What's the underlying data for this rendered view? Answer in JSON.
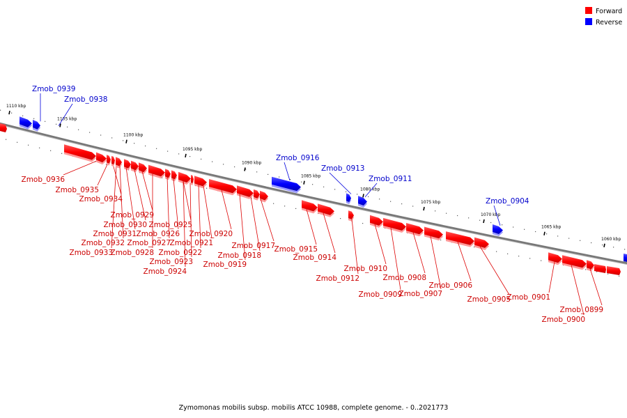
{
  "caption": "Zymomonas mobilis subsp. mobilis ATCC 10988, complete genome. - 0..2021773",
  "legend": [
    {
      "label": "Forward",
      "color": "#ff0000"
    },
    {
      "label": "Reverse",
      "color": "#0000ff"
    }
  ],
  "ticks": [
    {
      "kbp": 1110,
      "label": "1110 kbp"
    },
    {
      "kbp": 1105,
      "label": "1105 kbp"
    },
    {
      "kbp": 1100,
      "label": "1100 kbp"
    },
    {
      "kbp": 1095,
      "label": "1095 kbp"
    },
    {
      "kbp": 1090,
      "label": "1090 kbp"
    },
    {
      "kbp": 1085,
      "label": "1085 kbp"
    },
    {
      "kbp": 1080,
      "label": "1080 kbp"
    },
    {
      "kbp": 1075,
      "label": "1075 kbp"
    },
    {
      "kbp": 1070,
      "label": "1070 kbp"
    },
    {
      "kbp": 1065,
      "label": "1065 kbp"
    },
    {
      "kbp": 1060,
      "label": "1060 kbp"
    }
  ],
  "genes": [
    {
      "name": "Zmob_0939",
      "strand": "reverse"
    },
    {
      "name": "Zmob_0938",
      "strand": "reverse"
    },
    {
      "name": "Zmob_0936",
      "strand": "forward"
    },
    {
      "name": "Zmob_0935",
      "strand": "forward"
    },
    {
      "name": "Zmob_0934",
      "strand": "forward"
    },
    {
      "name": "Zmob_0933",
      "strand": "forward"
    },
    {
      "name": "Zmob_0932",
      "strand": "forward"
    },
    {
      "name": "Zmob_0931",
      "strand": "forward"
    },
    {
      "name": "Zmob_0930",
      "strand": "forward"
    },
    {
      "name": "Zmob_0929",
      "strand": "forward"
    },
    {
      "name": "Zmob_0928",
      "strand": "forward"
    },
    {
      "name": "Zmob_0927",
      "strand": "forward"
    },
    {
      "name": "Zmob_0926",
      "strand": "forward"
    },
    {
      "name": "Zmob_0925",
      "strand": "forward"
    },
    {
      "name": "Zmob_0924",
      "strand": "forward"
    },
    {
      "name": "Zmob_0923",
      "strand": "forward"
    },
    {
      "name": "Zmob_0922",
      "strand": "forward"
    },
    {
      "name": "Zmob_0921",
      "strand": "forward"
    },
    {
      "name": "Zmob_0920",
      "strand": "forward"
    },
    {
      "name": "Zmob_0919",
      "strand": "forward"
    },
    {
      "name": "Zmob_0918",
      "strand": "forward"
    },
    {
      "name": "Zmob_0917",
      "strand": "forward"
    },
    {
      "name": "Zmob_0916",
      "strand": "reverse"
    },
    {
      "name": "Zmob_0915",
      "strand": "forward"
    },
    {
      "name": "Zmob_0914",
      "strand": "forward"
    },
    {
      "name": "Zmob_0913",
      "strand": "reverse"
    },
    {
      "name": "Zmob_0912",
      "strand": "forward"
    },
    {
      "name": "Zmob_0911",
      "strand": "reverse"
    },
    {
      "name": "Zmob_0910",
      "strand": "forward"
    },
    {
      "name": "Zmob_0909",
      "strand": "forward"
    },
    {
      "name": "Zmob_0908",
      "strand": "forward"
    },
    {
      "name": "Zmob_0907",
      "strand": "forward"
    },
    {
      "name": "Zmob_0906",
      "strand": "forward"
    },
    {
      "name": "Zmob_0905",
      "strand": "forward"
    },
    {
      "name": "Zmob_0904",
      "strand": "reverse"
    },
    {
      "name": "Zmob_0901",
      "strand": "forward"
    },
    {
      "name": "Zmob_0900",
      "strand": "forward"
    },
    {
      "name": "Zmob_0899",
      "strand": "forward"
    }
  ]
}
